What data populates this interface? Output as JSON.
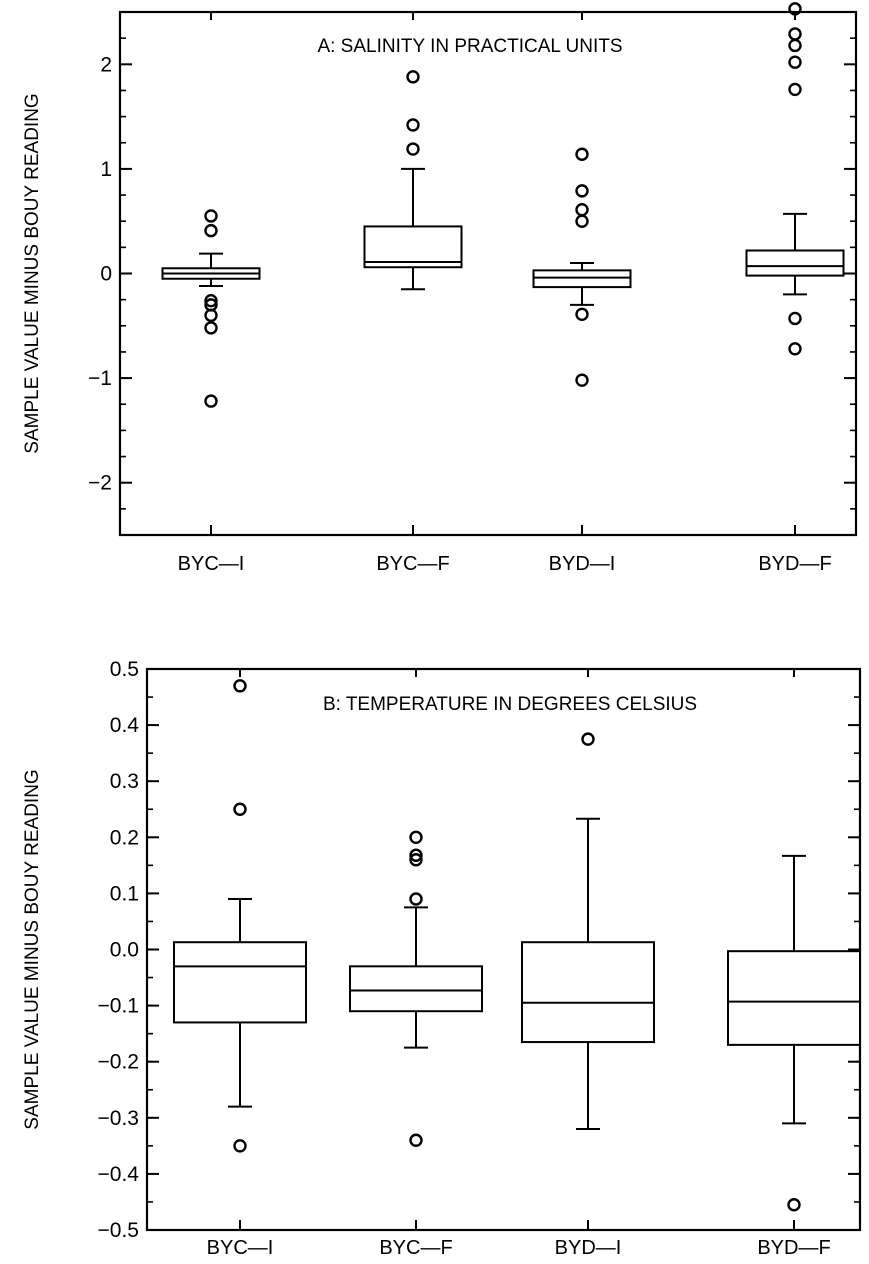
{
  "chart_data": [
    {
      "type": "box",
      "title": "A: SALINITY IN PRACTICAL UNITS",
      "ylabel": "SAMPLE VALUE MINUS BOUY READING",
      "xlabel": "",
      "ylim": [
        -2.5,
        2.5
      ],
      "yticks": [
        -2,
        -1,
        0,
        1,
        2
      ],
      "ytick_labels": [
        "−2",
        "−1",
        "0",
        "1",
        "2"
      ],
      "minor_step": 0.25,
      "categories": [
        "BYC—I",
        "BYC—F",
        "BYD—I",
        "BYD—F"
      ],
      "boxes": [
        {
          "whisker_low": -0.12,
          "q1": -0.05,
          "median": 0.0,
          "q3": 0.05,
          "whisker_high": 0.19,
          "outliers": [
            0.55,
            0.41,
            -0.26,
            -0.3,
            -0.4,
            -0.52,
            -1.22
          ]
        },
        {
          "whisker_low": -0.15,
          "q1": 0.06,
          "median": 0.11,
          "q3": 0.45,
          "whisker_high": 1.0,
          "outliers": [
            1.88,
            1.42,
            1.19
          ]
        },
        {
          "whisker_low": -0.3,
          "q1": -0.13,
          "median": -0.04,
          "q3": 0.03,
          "whisker_high": 0.1,
          "outliers": [
            1.14,
            0.79,
            0.61,
            0.5,
            -0.39,
            -1.02
          ]
        },
        {
          "whisker_low": -0.2,
          "q1": -0.02,
          "median": 0.07,
          "q3": 0.22,
          "whisker_high": 0.57,
          "outliers": [
            2.53,
            2.29,
            2.18,
            2.02,
            1.76,
            -0.43,
            -0.72
          ]
        }
      ]
    },
    {
      "type": "box",
      "title": "B: TEMPERATURE IN DEGREES CELSIUS",
      "ylabel": "SAMPLE VALUE MINUS BOUY READING",
      "xlabel": "",
      "ylim": [
        -0.5,
        0.5
      ],
      "yticks": [
        -0.5,
        -0.4,
        -0.3,
        -0.2,
        -0.1,
        0.0,
        0.1,
        0.2,
        0.3,
        0.4,
        0.5
      ],
      "ytick_labels": [
        "−0.5",
        "−0.4",
        "−0.3",
        "−0.2",
        "−0.1",
        "0.0",
        "0.1",
        "0.2",
        "0.3",
        "0.4",
        "0.5"
      ],
      "minor_step": 0.05,
      "categories": [
        "BYC—I",
        "BYC—F",
        "BYD—I",
        "BYD—F"
      ],
      "boxes": [
        {
          "whisker_low": -0.28,
          "q1": -0.13,
          "median": -0.03,
          "q3": 0.013,
          "whisker_high": 0.09,
          "outliers": [
            0.47,
            0.25,
            -0.35
          ]
        },
        {
          "whisker_low": -0.175,
          "q1": -0.11,
          "median": -0.073,
          "q3": -0.03,
          "whisker_high": 0.075,
          "outliers": [
            0.2,
            0.168,
            0.16,
            0.09,
            -0.34
          ]
        },
        {
          "whisker_low": -0.32,
          "q1": -0.165,
          "median": -0.095,
          "q3": 0.013,
          "whisker_high": 0.233,
          "outliers": [
            0.375
          ]
        },
        {
          "whisker_low": -0.31,
          "q1": -0.17,
          "median": -0.093,
          "q3": -0.003,
          "whisker_high": 0.167,
          "outliers": [
            -0.455
          ]
        }
      ]
    }
  ]
}
